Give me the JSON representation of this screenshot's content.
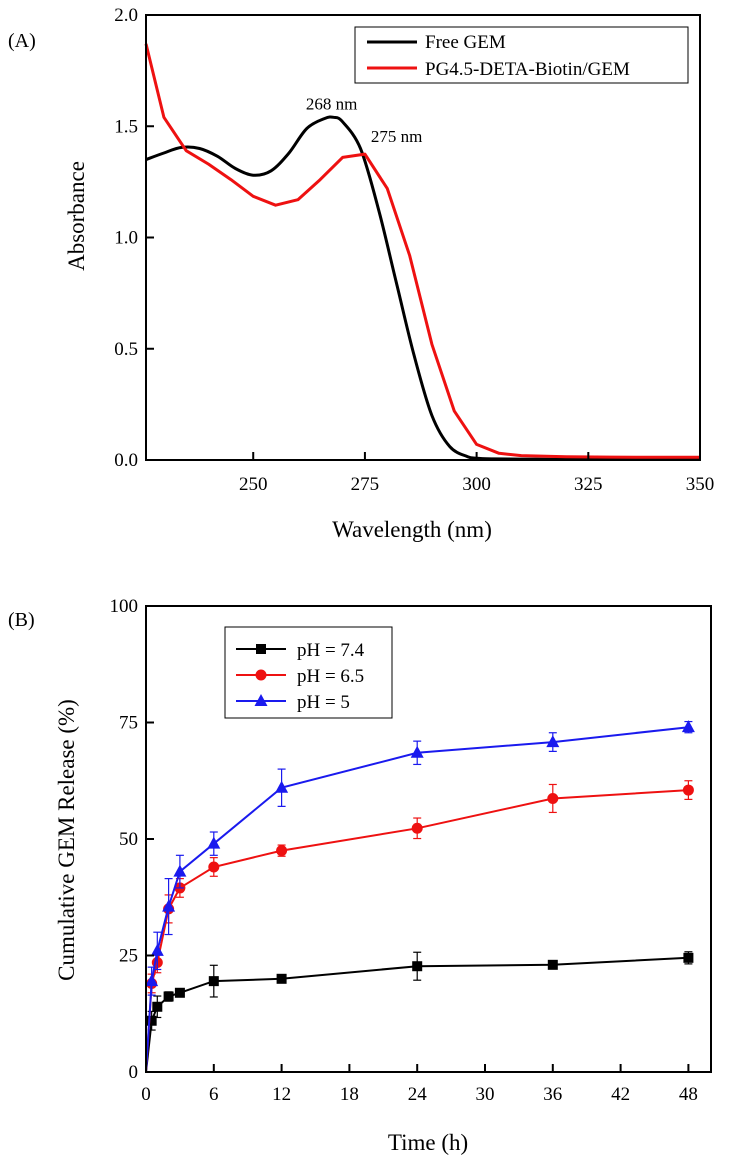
{
  "figure_labels": {
    "a": "(A)",
    "b": "(B)"
  },
  "chart_data": [
    {
      "type": "line",
      "panel": "A",
      "xlabel": "Wavelength (nm)",
      "ylabel": "Absorbance",
      "xlim": [
        226,
        350
      ],
      "ylim": [
        0,
        2.0
      ],
      "x_ticks": [
        250,
        275,
        300,
        325,
        350
      ],
      "y_ticks": [
        0.0,
        0.5,
        1.0,
        1.5,
        2.0
      ],
      "x_tick_labels": [
        "250",
        "275",
        "300",
        "325",
        "350"
      ],
      "y_tick_labels": [
        "0.0",
        "0.5",
        "1.0",
        "1.5",
        "2.0"
      ],
      "legend_position": "top-right",
      "series": [
        {
          "name": "Free GEM",
          "color": "#000000",
          "smooth": true,
          "x": [
            226,
            230,
            234,
            238,
            242,
            246,
            250,
            254,
            258,
            262,
            266,
            268,
            270,
            274,
            278,
            282,
            286,
            290,
            294,
            298,
            300,
            304,
            310,
            320,
            330,
            340,
            350
          ],
          "y": [
            1.35,
            1.38,
            1.405,
            1.4,
            1.365,
            1.31,
            1.28,
            1.3,
            1.38,
            1.49,
            1.535,
            1.54,
            1.52,
            1.4,
            1.13,
            0.8,
            0.47,
            0.2,
            0.06,
            0.015,
            0.008,
            0.005,
            0.004,
            0.003,
            0.003,
            0.003,
            0.003
          ]
        },
        {
          "name": "PG4.5-DETA-Biotin/GEM",
          "color": "#ee1111",
          "smooth": false,
          "x": [
            226,
            230,
            235,
            240,
            245,
            250,
            255,
            260,
            265,
            270,
            275,
            280,
            285,
            290,
            295,
            300,
            305,
            310,
            320,
            330,
            340,
            350
          ],
          "y": [
            1.87,
            1.54,
            1.39,
            1.33,
            1.26,
            1.185,
            1.145,
            1.17,
            1.26,
            1.36,
            1.375,
            1.22,
            0.92,
            0.52,
            0.22,
            0.07,
            0.03,
            0.02,
            0.015,
            0.013,
            0.012,
            0.012
          ]
        }
      ],
      "annotations": [
        {
          "text": "268 nm",
          "x": 268,
          "y": 1.54
        },
        {
          "text": "275 nm",
          "x": 275,
          "y": 1.375
        }
      ]
    },
    {
      "type": "line",
      "panel": "B",
      "xlabel": "Time (h)",
      "ylabel": "Cumulative GEM Release (%)",
      "xlim": [
        0,
        50
      ],
      "ylim": [
        0,
        100
      ],
      "x_ticks": [
        0,
        6,
        12,
        18,
        24,
        30,
        36,
        42,
        48
      ],
      "y_ticks": [
        0,
        25,
        50,
        75,
        100
      ],
      "x_tick_labels": [
        "0",
        "6",
        "12",
        "18",
        "24",
        "30",
        "36",
        "42",
        "48"
      ],
      "y_tick_labels": [
        "0",
        "25",
        "50",
        "75",
        "100"
      ],
      "legend_position": "top-left",
      "x": [
        0,
        0.5,
        1,
        2,
        3,
        6,
        12,
        24,
        36,
        48
      ],
      "series": [
        {
          "name": "pH = 7.4",
          "color": "#000000",
          "marker": "square",
          "values": [
            0,
            11,
            14,
            16.2,
            17,
            19.5,
            20,
            22.7,
            23,
            24.5
          ],
          "errors": [
            0,
            2,
            2.3,
            1,
            0.8,
            3.4,
            0.5,
            3,
            0.7,
            1.3
          ]
        },
        {
          "name": "pH = 6.5",
          "color": "#ee1111",
          "marker": "circle",
          "values": [
            0,
            19,
            23.5,
            35,
            39.5,
            44,
            47.5,
            52.3,
            58.7,
            60.5
          ],
          "errors": [
            0,
            2,
            2.2,
            3,
            2,
            2,
            1.2,
            2.2,
            3,
            2
          ]
        },
        {
          "name": "pH = 5",
          "color": "#1a1aee",
          "marker": "triangle",
          "values": [
            0,
            19.5,
            26,
            35.5,
            43,
            49,
            61,
            68.5,
            70.8,
            74
          ],
          "errors": [
            0,
            3,
            4,
            6,
            3.5,
            2.5,
            4,
            2.5,
            2,
            1.2
          ]
        }
      ]
    }
  ]
}
